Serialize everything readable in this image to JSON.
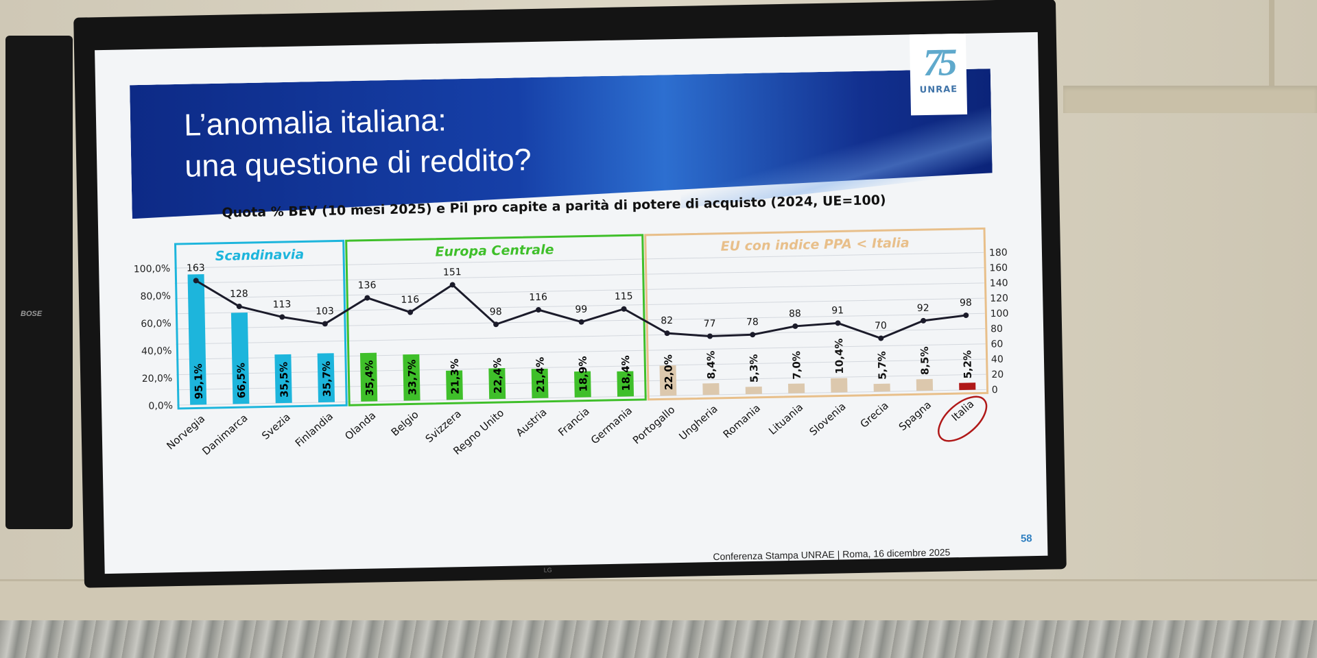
{
  "slide": {
    "title_line1": "L’anomalia italiana:",
    "title_line2": "una questione di reddito?",
    "logo_number": "75",
    "logo_text": "UNRAE",
    "footer": "Conferenza Stampa UNRAE | Roma, 16 dicembre 2025",
    "page_number": "58",
    "speaker_brand": "BOSE",
    "tv_brand": "LG"
  },
  "colors": {
    "scandinavia": "#1db5dc",
    "centrale": "#3fbf2a",
    "eu_low": "#e8bf8a",
    "eu_bar": "#dcc8ad",
    "italia": "#b01818",
    "line": "#1b1b2a"
  },
  "chart_data": {
    "type": "bar",
    "title": "Quota % BEV (10 mesi 2025) e Pil pro capite a parità di potere di acquisto (2024, UE=100)",
    "xlabel": "",
    "ylabel": "",
    "ylim": [
      0,
      100
    ],
    "y2lim": [
      0,
      180
    ],
    "yticks": [
      "0,0%",
      "20,0%",
      "40,0%",
      "60,0%",
      "80,0%",
      "100,0%"
    ],
    "y2ticks": [
      "0",
      "20",
      "40",
      "60",
      "80",
      "100",
      "120",
      "140",
      "160",
      "180"
    ],
    "grid": true,
    "groups": [
      {
        "name": "Scandinavia",
        "start": 0,
        "end": 3,
        "color_key": "scandinavia"
      },
      {
        "name": "Europa Centrale",
        "start": 4,
        "end": 10,
        "color_key": "centrale"
      },
      {
        "name": "EU con indice PPA < Italia",
        "start": 11,
        "end": 18,
        "color_key": "eu_low"
      }
    ],
    "categories": [
      "Norvegia",
      "Danimarca",
      "Svezia",
      "Finlandia",
      "Olanda",
      "Belgio",
      "Svizzera",
      "Regno Unito",
      "Austria",
      "Francia",
      "Germania",
      "Portogallo",
      "Ungheria",
      "Romania",
      "Lituania",
      "Slovenia",
      "Grecia",
      "Spagna",
      "Italia"
    ],
    "series": [
      {
        "type": "bar",
        "values": [
          95.1,
          66.5,
          35.5,
          35.7,
          35.4,
          33.7,
          21.3,
          22.4,
          21.4,
          18.9,
          18.4,
          22.0,
          8.4,
          5.3,
          7.0,
          10.4,
          5.7,
          8.5,
          5.2
        ],
        "labels": [
          "95,1%",
          "66,5%",
          "35,5%",
          "35,7%",
          "35,4%",
          "33,7%",
          "21,3%",
          "22,4%",
          "21,4%",
          "18,9%",
          "18,4%",
          "22,0%",
          "8,4%",
          "5,3%",
          "7,0%",
          "10,4%",
          "5,7%",
          "8,5%",
          "5,2%"
        ]
      },
      {
        "type": "line",
        "axis": "secondary",
        "values": [
          163,
          128,
          113,
          103,
          136,
          116,
          151,
          98,
          116,
          99,
          115,
          82,
          77,
          78,
          88,
          91,
          70,
          92,
          98
        ],
        "labels": [
          "163",
          "128",
          "113",
          "103",
          "136",
          "116",
          "151",
          "98",
          "116",
          "99",
          "115",
          "82",
          "77",
          "78",
          "88",
          "91",
          "70",
          "92",
          "98"
        ]
      }
    ],
    "highlight_category": "Italia"
  }
}
